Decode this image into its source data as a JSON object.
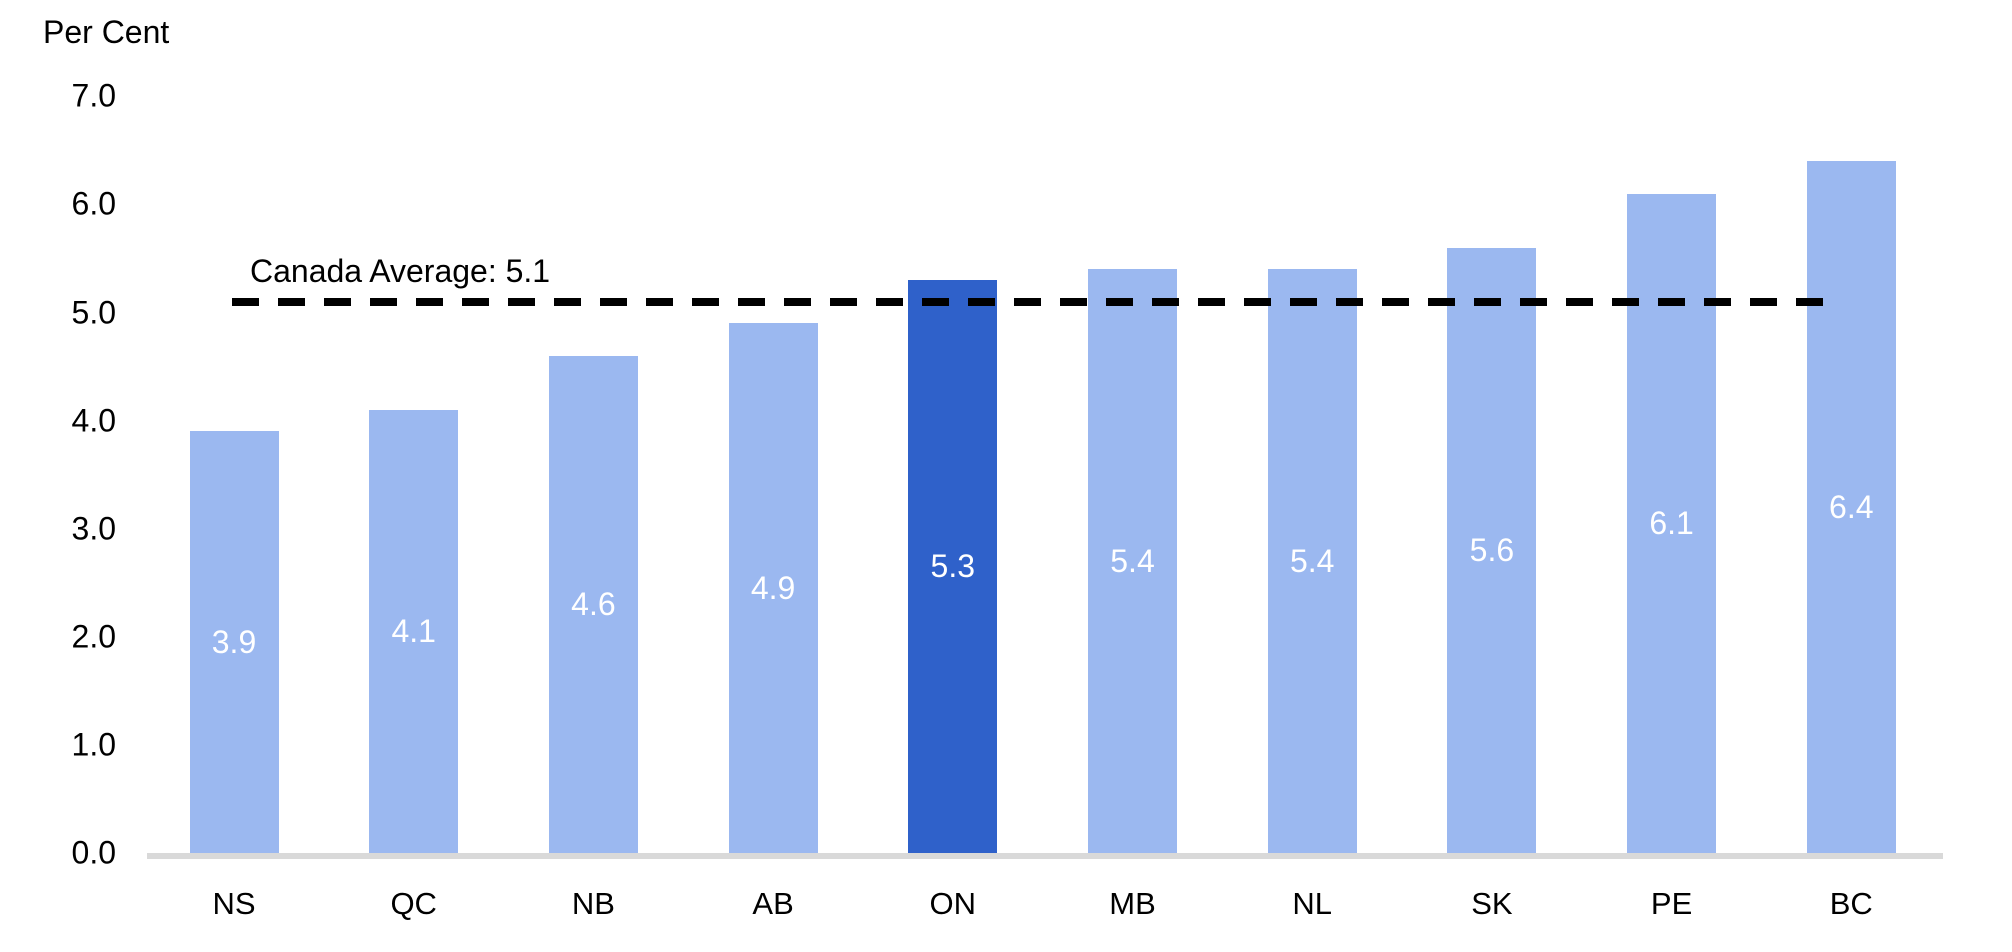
{
  "unit_label": "Per Cent",
  "chart_data": {
    "type": "bar",
    "title": "",
    "ylabel": "Per Cent",
    "xlabel": "",
    "categories": [
      "NS",
      "QC",
      "NB",
      "AB",
      "ON",
      "MB",
      "NL",
      "SK",
      "PE",
      "BC"
    ],
    "values": [
      3.9,
      4.1,
      4.6,
      4.9,
      5.3,
      5.4,
      5.4,
      5.6,
      6.1,
      6.4
    ],
    "value_labels": [
      "3.9",
      "4.1",
      "4.6",
      "4.9",
      "5.3",
      "5.4",
      "5.4",
      "5.6",
      "6.1",
      "6.4"
    ],
    "highlight_index": 4,
    "highlight_category": "ON",
    "average_line": {
      "label": "Canada Average: 5.1",
      "value": 5.1
    },
    "y_ticks": [
      "0.0",
      "1.0",
      "2.0",
      "3.0",
      "4.0",
      "5.0",
      "6.0",
      "7.0"
    ],
    "ylim": [
      0.0,
      7.0
    ],
    "grid": "off",
    "legend": "none",
    "colors": {
      "bar": "#9BB8F0",
      "highlight_bar": "#2F61CA",
      "bar_value_text": "#FFFFFF",
      "average_line": "#000000",
      "axis_line": "#D9D9D9",
      "text": "#000000"
    }
  }
}
